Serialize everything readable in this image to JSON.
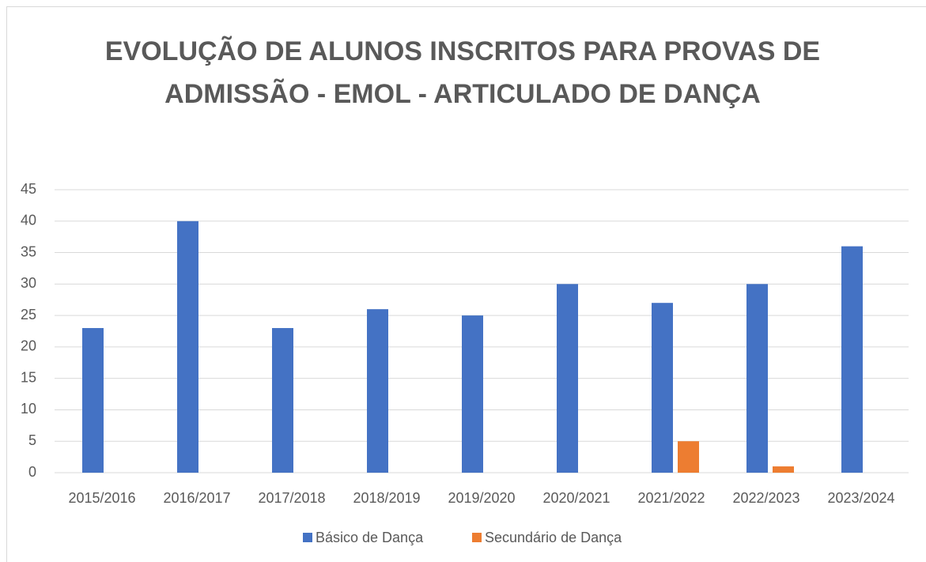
{
  "chart_data": {
    "type": "bar",
    "title": "EVOLUÇÃO DE ALUNOS INSCRITOS PARA PROVAS DE ADMISSÃO - EMOL - ARTICULADO DE DANÇA",
    "categories": [
      "2015/2016",
      "2016/2017",
      "2017/2018",
      "2018/2019",
      "2019/2020",
      "2020/2021",
      "2021/2022",
      "2022/2023",
      "2023/2024"
    ],
    "series": [
      {
        "name": "Básico de Dança",
        "color": "#4472c4",
        "values": [
          23,
          40,
          23,
          26,
          25,
          30,
          27,
          30,
          36
        ]
      },
      {
        "name": "Secundário de Dança",
        "color": "#ed7d31",
        "values": [
          0,
          0,
          0,
          0,
          0,
          0,
          5,
          1,
          0
        ]
      }
    ],
    "ylim": [
      0,
      45
    ],
    "yticks": [
      0,
      5,
      10,
      15,
      20,
      25,
      30,
      35,
      40,
      45
    ],
    "grid": true,
    "legend": "bottom"
  }
}
